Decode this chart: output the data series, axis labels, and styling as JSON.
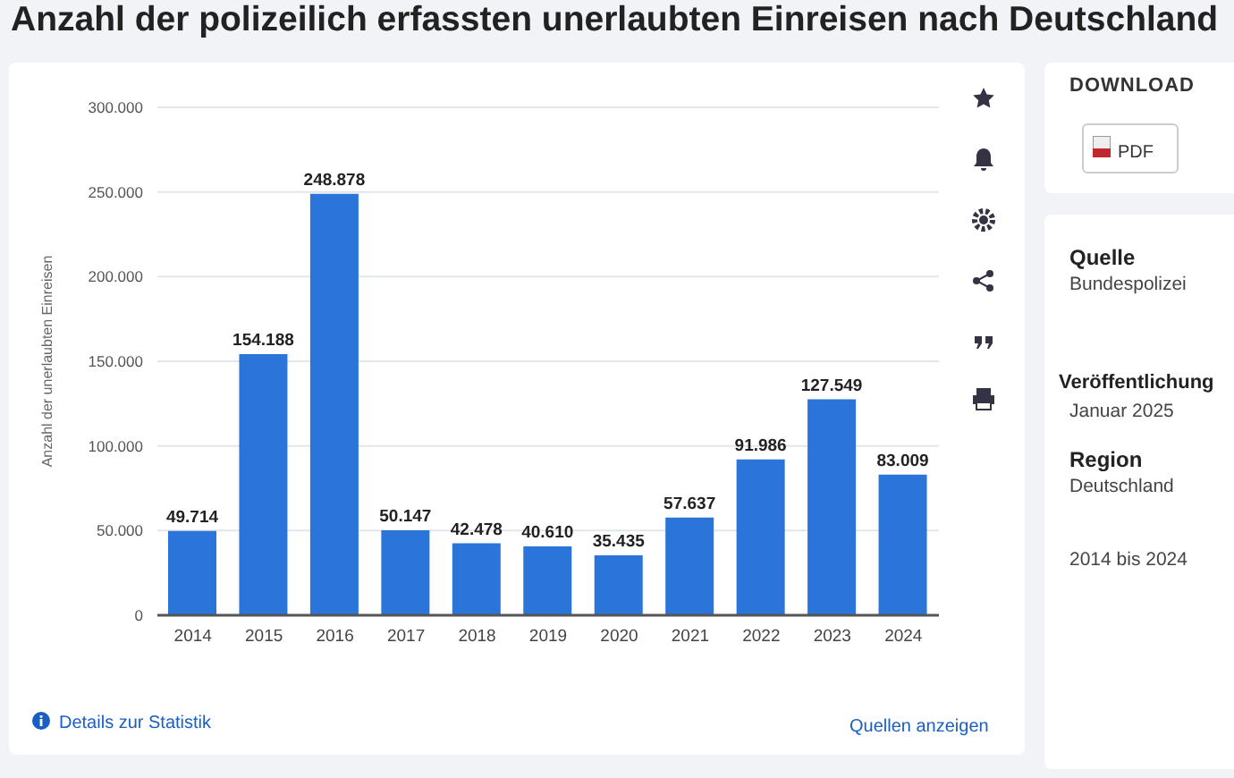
{
  "chart_data": {
    "type": "bar",
    "title": "Anzahl der polizeilich erfassten unerlaubten Einreisen nach Deutschland",
    "ylabel": "Anzahl der unerlaubten Einreisen",
    "categories": [
      "2014",
      "2015",
      "2016",
      "2017",
      "2018",
      "2019",
      "2020",
      "2021",
      "2022",
      "2023",
      "2024"
    ],
    "values": [
      49714,
      154188,
      248878,
      50147,
      42478,
      40610,
      35435,
      57637,
      91986,
      127549,
      83009
    ],
    "value_labels": [
      "49.714",
      "154.188",
      "248.878",
      "50.147",
      "42.478",
      "40.610",
      "35.435",
      "57.637",
      "91.986",
      "127.549",
      "83.009"
    ],
    "color": "#2a74da",
    "ylim": [
      0,
      300000
    ],
    "yticks": [
      0,
      {
        "value": 50000,
        "label": "50.000"
      },
      {
        "value": 100000,
        "label": "100.000"
      },
      {
        "value": 150000,
        "label": "150.000"
      },
      {
        "value": 200000,
        "label": "200.000"
      },
      {
        "value": 250000,
        "label": "250.000"
      },
      {
        "value": 300000,
        "label": "300.000"
      }
    ],
    "grid": "y",
    "annotations": [
      "Details zur Statistik",
      "Quellen anzeigen",
      "DOWNLOAD",
      "PDF",
      "Quelle",
      "Bundespolizei",
      "Veröffentlichung",
      "Januar 2025",
      "Region",
      "Deutschland",
      "2014 bis 2024"
    ]
  }
}
